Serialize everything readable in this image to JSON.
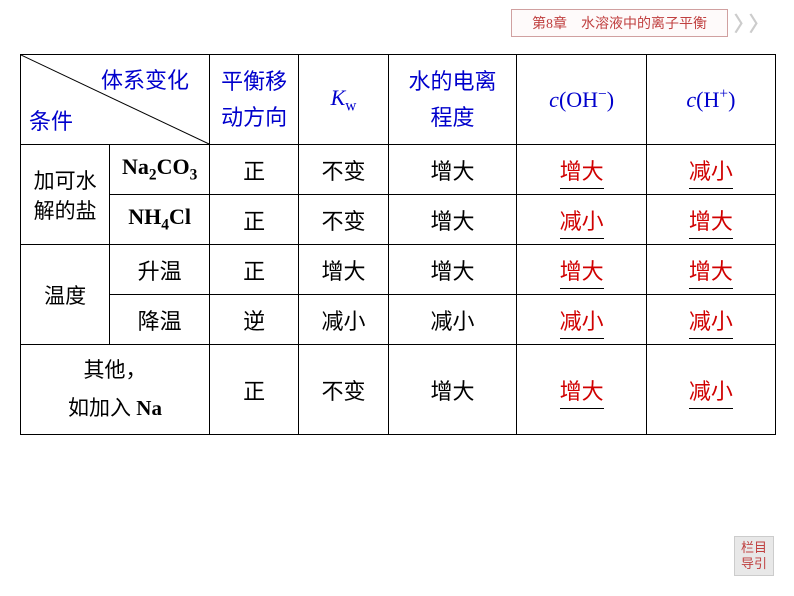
{
  "banner": {
    "text": "第8章　水溶液中的离子平衡"
  },
  "headers": {
    "diagonal_top": "体系变化",
    "diagonal_bottom": "条件",
    "col2_line1": "平衡移",
    "col2_line2": "动方向",
    "col3_html": "<span class='italic'>K</span><span class='roman sub'>w</span>",
    "col4_line1": "水的电离",
    "col4_line2": "程度",
    "col5_html": "<span class='italic'>c</span><span class='roman'>(OH</span><span class='sup roman'>−</span><span class='roman'>)</span>",
    "col6_html": "<span class='italic'>c</span><span class='roman'>(H</span><span class='sup roman'>+</span><span class='roman'>)</span>"
  },
  "rows": {
    "salt_label_line1": "加可水",
    "salt_label_line2": "解的盐",
    "salt1_label_html": "<span class='roman'><b>Na</b></span><span class='sub roman'><b>2</b></span><span class='roman'><b>CO</b></span><span class='sub roman'><b>3</b></span>",
    "salt1": {
      "dir": "正",
      "kw": "不变",
      "degree": "增大",
      "oh": "增大",
      "h": "减小"
    },
    "salt2_label_html": "<span class='roman'><b>NH</b></span><span class='sub roman'><b>4</b></span><span class='roman'><b>Cl</b></span>",
    "salt2": {
      "dir": "正",
      "kw": "不变",
      "degree": "增大",
      "oh": "减小",
      "h": "增大"
    },
    "temp_label": "温度",
    "temp_up_label": "升温",
    "temp_up": {
      "dir": "正",
      "kw": "增大",
      "degree": "增大",
      "oh": "增大",
      "h": "增大"
    },
    "temp_down_label": "降温",
    "temp_down": {
      "dir": "逆",
      "kw": "减小",
      "degree": "减小",
      "oh": "减小",
      "h": "减小"
    },
    "other_label_line1": "其他，",
    "other_label_line2_html": "如加入 <span class='roman'><b>Na</b></span>",
    "other": {
      "dir": "正",
      "kw": "不变",
      "degree": "增大",
      "oh": "增大",
      "h": "减小"
    }
  },
  "nav": {
    "line1": "栏目",
    "line2": "导引"
  },
  "styling": {
    "header_color": "#0000cc",
    "answer_color": "#d00000",
    "text_color": "#000000",
    "banner_border": "#d0a0a0",
    "banner_text": "#c04040",
    "border_color": "#000000",
    "font_size_body": 22,
    "font_size_banner": 14
  }
}
